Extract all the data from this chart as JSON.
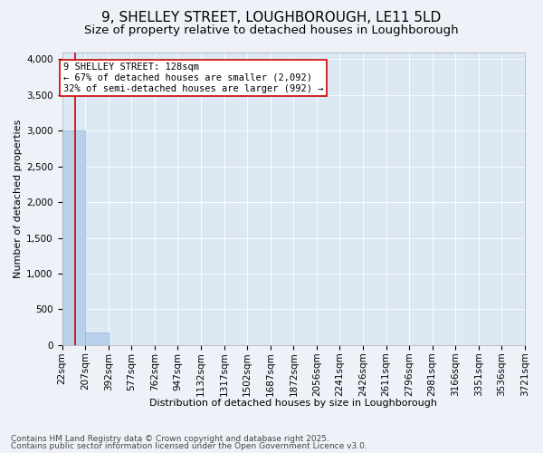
{
  "title1": "9, SHELLEY STREET, LOUGHBOROUGH, LE11 5LD",
  "title2": "Size of property relative to detached houses in Loughborough",
  "xlabel": "Distribution of detached houses by size in Loughborough",
  "ylabel": "Number of detached properties",
  "bin_edges": [
    22,
    207,
    392,
    577,
    762,
    947,
    1132,
    1317,
    1502,
    1687,
    1872,
    2056,
    2241,
    2426,
    2611,
    2796,
    2981,
    3166,
    3351,
    3536,
    3721
  ],
  "bar_heights": [
    3000,
    170,
    0,
    0,
    0,
    0,
    0,
    0,
    0,
    0,
    0,
    0,
    0,
    0,
    0,
    0,
    0,
    0,
    0,
    0
  ],
  "bar_color": "#b8d0ea",
  "bar_edge_color": "#8fb8dc",
  "subject_value": 128,
  "subject_line_color": "#cc0000",
  "annotation_text": "9 SHELLEY STREET: 128sqm\n← 67% of detached houses are smaller (2,092)\n32% of semi-detached houses are larger (992) →",
  "annotation_box_color": "#ffffff",
  "annotation_border_color": "#cc0000",
  "ylim": [
    0,
    4100
  ],
  "yticks": [
    0,
    500,
    1000,
    1500,
    2000,
    2500,
    3000,
    3500,
    4000
  ],
  "background_color": "#eef2f8",
  "plot_bg_color": "#dce8f4",
  "footer_line1": "Contains HM Land Registry data © Crown copyright and database right 2025.",
  "footer_line2": "Contains public sector information licensed under the Open Government Licence v3.0.",
  "title1_fontsize": 11,
  "title2_fontsize": 9.5,
  "xlabel_fontsize": 8,
  "ylabel_fontsize": 8,
  "tick_fontsize": 7.5,
  "footer_fontsize": 6.5,
  "annotation_fontsize": 7.5
}
